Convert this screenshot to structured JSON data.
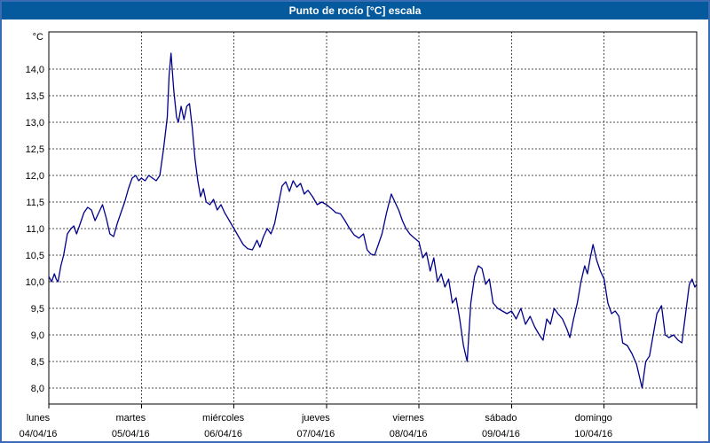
{
  "window": {
    "title": "Punto de rocío [°C] escala"
  },
  "colors": {
    "titlebar_bg": "#045a9c",
    "window_border": "#3a6cb4",
    "line": "#00008b",
    "grid": "#4a4a4a"
  },
  "chart_data": {
    "type": "line",
    "title": "Punto de rocío [°C] escala",
    "ylabel": "°C",
    "ylim": [
      7.7,
      14.7
    ],
    "y_ticks": [
      14,
      13.5,
      13,
      12.5,
      12,
      11.5,
      11,
      10.5,
      10,
      9.5,
      9,
      8.5,
      8
    ],
    "grid": "dashed",
    "legend_position": "none",
    "days": [
      {
        "name": "lunes",
        "date": "04/04/16"
      },
      {
        "name": "martes",
        "date": "05/04/16"
      },
      {
        "name": "miércoles",
        "date": "06/04/16"
      },
      {
        "name": "jueves",
        "date": "07/04/16"
      },
      {
        "name": "viernes",
        "date": "08/04/16"
      },
      {
        "name": "sábado",
        "date": "09/04/16"
      },
      {
        "name": "domingo",
        "date": "10/04/16"
      }
    ],
    "series": [
      {
        "name": "Punto de rocío [°C]",
        "color": "#00008b",
        "points": [
          [
            0.0,
            10.1
          ],
          [
            0.03,
            10.0
          ],
          [
            0.06,
            10.15
          ],
          [
            0.08,
            10.05
          ],
          [
            0.1,
            10.0
          ],
          [
            0.13,
            10.3
          ],
          [
            0.16,
            10.5
          ],
          [
            0.2,
            10.9
          ],
          [
            0.24,
            11.0
          ],
          [
            0.27,
            11.05
          ],
          [
            0.3,
            10.9
          ],
          [
            0.34,
            11.1
          ],
          [
            0.38,
            11.3
          ],
          [
            0.42,
            11.4
          ],
          [
            0.46,
            11.35
          ],
          [
            0.5,
            11.15
          ],
          [
            0.54,
            11.3
          ],
          [
            0.58,
            11.45
          ],
          [
            0.62,
            11.2
          ],
          [
            0.66,
            10.9
          ],
          [
            0.7,
            10.85
          ],
          [
            0.74,
            11.1
          ],
          [
            0.78,
            11.3
          ],
          [
            0.82,
            11.5
          ],
          [
            0.86,
            11.75
          ],
          [
            0.9,
            11.95
          ],
          [
            0.94,
            12.0
          ],
          [
            0.97,
            11.9
          ],
          [
            1.0,
            11.95
          ],
          [
            1.04,
            11.9
          ],
          [
            1.08,
            12.0
          ],
          [
            1.12,
            11.95
          ],
          [
            1.16,
            11.9
          ],
          [
            1.2,
            12.0
          ],
          [
            1.24,
            12.5
          ],
          [
            1.28,
            13.1
          ],
          [
            1.3,
            13.9
          ],
          [
            1.32,
            14.3
          ],
          [
            1.35,
            13.6
          ],
          [
            1.38,
            13.1
          ],
          [
            1.4,
            13.0
          ],
          [
            1.43,
            13.3
          ],
          [
            1.46,
            13.05
          ],
          [
            1.49,
            13.3
          ],
          [
            1.52,
            13.35
          ],
          [
            1.55,
            12.9
          ],
          [
            1.58,
            12.3
          ],
          [
            1.61,
            11.9
          ],
          [
            1.64,
            11.6
          ],
          [
            1.67,
            11.75
          ],
          [
            1.7,
            11.5
          ],
          [
            1.74,
            11.45
          ],
          [
            1.78,
            11.55
          ],
          [
            1.82,
            11.35
          ],
          [
            1.86,
            11.45
          ],
          [
            1.9,
            11.3
          ],
          [
            1.95,
            11.15
          ],
          [
            2.0,
            11.0
          ],
          [
            2.05,
            10.85
          ],
          [
            2.1,
            10.7
          ],
          [
            2.15,
            10.62
          ],
          [
            2.2,
            10.6
          ],
          [
            2.25,
            10.78
          ],
          [
            2.28,
            10.65
          ],
          [
            2.32,
            10.85
          ],
          [
            2.36,
            11.0
          ],
          [
            2.4,
            10.9
          ],
          [
            2.44,
            11.1
          ],
          [
            2.48,
            11.45
          ],
          [
            2.52,
            11.8
          ],
          [
            2.56,
            11.88
          ],
          [
            2.6,
            11.7
          ],
          [
            2.64,
            11.9
          ],
          [
            2.68,
            11.78
          ],
          [
            2.72,
            11.85
          ],
          [
            2.76,
            11.65
          ],
          [
            2.8,
            11.72
          ],
          [
            2.85,
            11.6
          ],
          [
            2.9,
            11.45
          ],
          [
            2.95,
            11.5
          ],
          [
            3.0,
            11.45
          ],
          [
            3.05,
            11.38
          ],
          [
            3.1,
            11.3
          ],
          [
            3.15,
            11.28
          ],
          [
            3.2,
            11.15
          ],
          [
            3.25,
            11.0
          ],
          [
            3.3,
            10.88
          ],
          [
            3.35,
            10.82
          ],
          [
            3.4,
            10.9
          ],
          [
            3.44,
            10.6
          ],
          [
            3.48,
            10.52
          ],
          [
            3.52,
            10.5
          ],
          [
            3.56,
            10.7
          ],
          [
            3.6,
            10.9
          ],
          [
            3.65,
            11.3
          ],
          [
            3.7,
            11.65
          ],
          [
            3.74,
            11.5
          ],
          [
            3.78,
            11.35
          ],
          [
            3.82,
            11.15
          ],
          [
            3.86,
            11.0
          ],
          [
            3.9,
            10.9
          ],
          [
            3.95,
            10.82
          ],
          [
            4.0,
            10.75
          ],
          [
            4.04,
            10.45
          ],
          [
            4.08,
            10.55
          ],
          [
            4.12,
            10.2
          ],
          [
            4.16,
            10.45
          ],
          [
            4.2,
            10.0
          ],
          [
            4.24,
            10.15
          ],
          [
            4.28,
            9.9
          ],
          [
            4.32,
            10.05
          ],
          [
            4.36,
            9.6
          ],
          [
            4.4,
            9.7
          ],
          [
            4.44,
            9.3
          ],
          [
            4.48,
            8.8
          ],
          [
            4.52,
            8.5
          ],
          [
            4.56,
            9.6
          ],
          [
            4.6,
            10.1
          ],
          [
            4.64,
            10.3
          ],
          [
            4.68,
            10.25
          ],
          [
            4.72,
            9.95
          ],
          [
            4.76,
            10.05
          ],
          [
            4.8,
            9.6
          ],
          [
            4.85,
            9.5
          ],
          [
            4.9,
            9.45
          ],
          [
            4.95,
            9.4
          ],
          [
            5.0,
            9.45
          ],
          [
            5.05,
            9.3
          ],
          [
            5.1,
            9.5
          ],
          [
            5.15,
            9.2
          ],
          [
            5.2,
            9.35
          ],
          [
            5.25,
            9.15
          ],
          [
            5.3,
            9.0
          ],
          [
            5.34,
            8.9
          ],
          [
            5.38,
            9.3
          ],
          [
            5.42,
            9.2
          ],
          [
            5.46,
            9.5
          ],
          [
            5.5,
            9.4
          ],
          [
            5.55,
            9.3
          ],
          [
            5.6,
            9.1
          ],
          [
            5.63,
            8.95
          ],
          [
            5.67,
            9.3
          ],
          [
            5.71,
            9.6
          ],
          [
            5.75,
            10.0
          ],
          [
            5.79,
            10.3
          ],
          [
            5.82,
            10.15
          ],
          [
            5.85,
            10.45
          ],
          [
            5.88,
            10.7
          ],
          [
            5.92,
            10.4
          ],
          [
            5.96,
            10.2
          ],
          [
            6.0,
            10.05
          ],
          [
            6.04,
            9.6
          ],
          [
            6.08,
            9.4
          ],
          [
            6.12,
            9.45
          ],
          [
            6.16,
            9.35
          ],
          [
            6.2,
            8.85
          ],
          [
            6.25,
            8.8
          ],
          [
            6.3,
            8.65
          ],
          [
            6.35,
            8.45
          ],
          [
            6.41,
            8.0
          ],
          [
            6.45,
            8.5
          ],
          [
            6.49,
            8.6
          ],
          [
            6.53,
            9.0
          ],
          [
            6.57,
            9.4
          ],
          [
            6.62,
            9.55
          ],
          [
            6.66,
            9.0
          ],
          [
            6.7,
            8.95
          ],
          [
            6.75,
            9.0
          ],
          [
            6.8,
            8.9
          ],
          [
            6.84,
            8.85
          ],
          [
            6.88,
            9.4
          ],
          [
            6.92,
            9.95
          ],
          [
            6.95,
            10.05
          ],
          [
            6.98,
            9.9
          ],
          [
            7.0,
            9.95
          ]
        ]
      }
    ]
  }
}
